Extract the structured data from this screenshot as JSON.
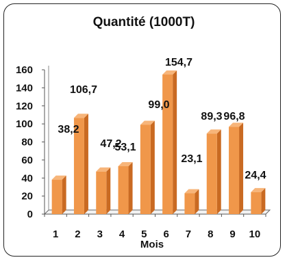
{
  "chart_data": {
    "type": "bar",
    "title": "Quantité (1000T)",
    "xlabel": "Mois",
    "ylabel": "",
    "categories": [
      "1",
      "2",
      "3",
      "4",
      "5",
      "6",
      "7",
      "8",
      "9",
      "10"
    ],
    "values": [
      38.2,
      106.7,
      47.2,
      53.1,
      99.0,
      154.7,
      23.1,
      89.3,
      96.8,
      24.4
    ],
    "data_labels": [
      "38,2",
      "106,7",
      "47,2",
      "53,1",
      "99,0",
      "154,7",
      "23,1",
      "89,3",
      "96,8",
      "24,4"
    ],
    "yticks": [
      "0",
      "20",
      "40",
      "60",
      "80",
      "100",
      "120",
      "140",
      "160"
    ],
    "ylim": [
      0,
      160
    ],
    "grid": false,
    "legend": "none",
    "bar_color": "#f0974a",
    "bar_side_color": "#c96a22",
    "bar_top_color": "#f7b57a"
  }
}
